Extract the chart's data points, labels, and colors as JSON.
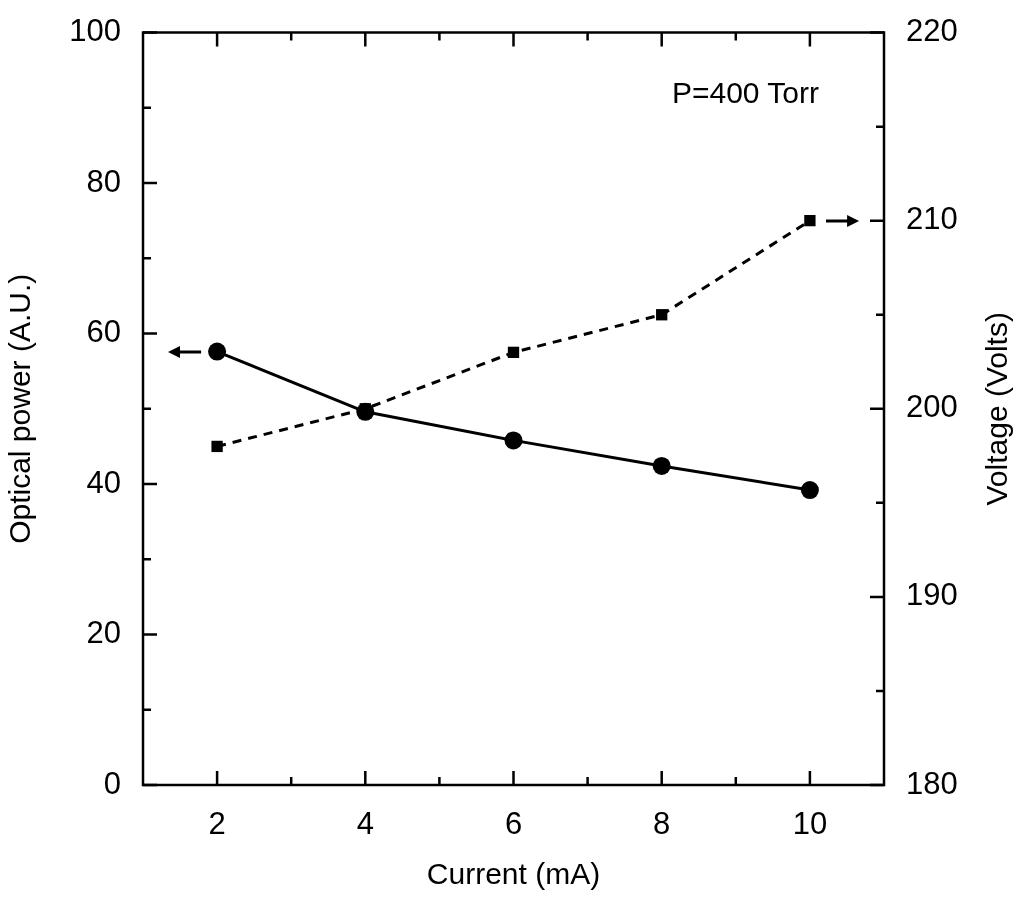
{
  "chart_data": {
    "type": "line",
    "xlabel": "Current (mA)",
    "ylabel": "Optical power (A.U.)",
    "y2label": "Voltage (Volts)",
    "x": [
      2,
      4,
      6,
      8,
      10
    ],
    "series": [
      {
        "color": "#000000",
        "values": [
          57.6,
          49.6,
          45.8,
          42.4,
          39.2
        ],
        "marker": "circle",
        "line_style": "solid"
      },
      {
        "color": "#000000",
        "values": [
          198,
          200,
          203,
          205,
          210
        ],
        "axis": "y2",
        "marker": "square",
        "line_style": "dashed"
      }
    ],
    "xlim": [
      1,
      11
    ],
    "xticks": [
      2,
      {
        "value": 3,
        "label": null
      },
      4,
      {
        "value": 5,
        "label": null
      },
      6,
      {
        "value": 7,
        "label": null
      },
      8,
      {
        "value": 9,
        "label": null
      },
      10
    ],
    "ylim": [
      0,
      100
    ],
    "yticks": [
      0,
      {
        "value": 10,
        "label": null
      },
      20,
      {
        "value": 30,
        "label": null
      },
      40,
      {
        "value": 50,
        "label": null
      },
      60,
      {
        "value": 70,
        "label": null
      },
      80,
      {
        "value": 90,
        "label": null
      },
      100
    ],
    "y2lim": [
      180,
      220
    ],
    "y2ticks": [
      180,
      {
        "value": 185,
        "label": null
      },
      190,
      {
        "value": 195,
        "label": null
      },
      200,
      {
        "value": 205,
        "label": null
      },
      210,
      {
        "value": 215,
        "label": null
      },
      220
    ],
    "annotations": [
      "P=400 Torr"
    ]
  }
}
